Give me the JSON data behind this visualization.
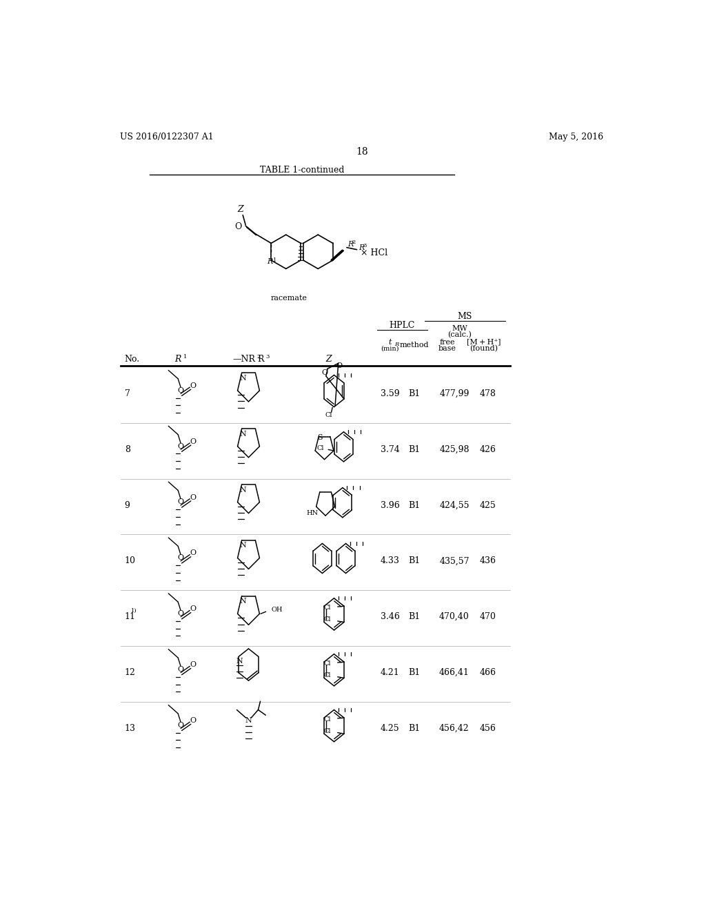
{
  "background_color": "#ffffff",
  "header_left": "US 2016/0122307 A1",
  "header_right": "May 5, 2016",
  "page_number": "18",
  "table_title": "TABLE 1-continued",
  "racemate_label": "racemate",
  "x_hcl_label": "× HCl",
  "ms_label": "MS",
  "mw_label": "MW",
  "mw_label2": "(calc.)",
  "hplc_label": "HPLC",
  "rows": [
    {
      "no": "7",
      "sup": "",
      "tr": "3.59",
      "method": "B1",
      "mw": "477,99",
      "found": "478"
    },
    {
      "no": "8",
      "sup": "",
      "tr": "3.74",
      "method": "B1",
      "mw": "425,98",
      "found": "426"
    },
    {
      "no": "9",
      "sup": "",
      "tr": "3.96",
      "method": "B1",
      "mw": "424,55",
      "found": "425"
    },
    {
      "no": "10",
      "sup": "",
      "tr": "4.33",
      "method": "B1",
      "mw": "435,57",
      "found": "436"
    },
    {
      "no": "11",
      "sup": "1)",
      "tr": "3.46",
      "method": "B1",
      "mw": "470,40",
      "found": "470"
    },
    {
      "no": "12",
      "sup": "",
      "tr": "4.21",
      "method": "B1",
      "mw": "466,41",
      "found": "466"
    },
    {
      "no": "13",
      "sup": "",
      "tr": "4.25",
      "method": "B1",
      "mw": "456,42",
      "found": "456"
    }
  ]
}
